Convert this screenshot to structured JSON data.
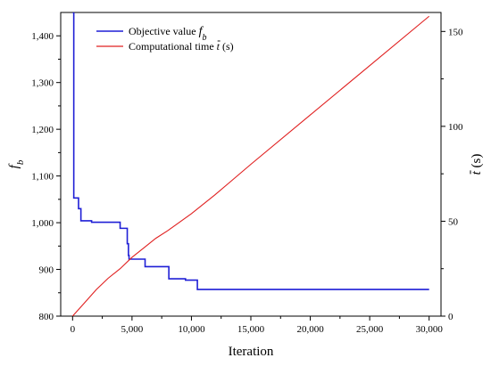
{
  "chart_data": {
    "type": "line",
    "xlabel": "Iteration",
    "ylabel_left": "f",
    "ylabel_left_sub": "b",
    "ylabel_right": "t (s)",
    "ylabel_right_italic": "t",
    "ylabel_right_unit": "(s)",
    "xlim": [
      -1000,
      31000
    ],
    "ylim_left": [
      800,
      1450
    ],
    "ylim_right": [
      0,
      160
    ],
    "x_ticks": [
      0,
      5000,
      10000,
      15000,
      20000,
      25000,
      30000
    ],
    "x_tick_labels": [
      "0",
      "5,000",
      "10,000",
      "15,000",
      "20,000",
      "25,000",
      "30,000"
    ],
    "y_left_ticks": [
      800,
      900,
      1000,
      1100,
      1200,
      1300,
      1400
    ],
    "y_left_tick_labels": [
      "800",
      "900",
      "1,000",
      "1,100",
      "1,200",
      "1,300",
      "1,400"
    ],
    "y_right_ticks": [
      0,
      50,
      100,
      150
    ],
    "y_right_tick_labels": [
      "0",
      "50",
      "100",
      "150"
    ],
    "grid": false,
    "legend_position": "top-left",
    "series": [
      {
        "name": "Objective value f_b",
        "legend_label": "Objective value ",
        "legend_italic": "f",
        "legend_sub": "b",
        "axis": "left",
        "color": "#1f1fd6",
        "step": true,
        "x": [
          0,
          100,
          500,
          700,
          1600,
          4000,
          4600,
          4700,
          4750,
          6100,
          8100,
          9500,
          10500,
          30000
        ],
        "y": [
          1450,
          1053,
          1030,
          1004,
          1001,
          988,
          955,
          930,
          922,
          906,
          880,
          877,
          857,
          857
        ]
      },
      {
        "name": "Computational time t (s)",
        "legend_label": "Computational time ",
        "legend_italic": "t",
        "legend_suffix": " (s)",
        "axis": "right",
        "color": "#e02020",
        "x": [
          0,
          1000,
          2000,
          3000,
          4000,
          5000,
          6000,
          7000,
          8000,
          10000,
          12000,
          15000,
          20000,
          25000,
          30000
        ],
        "y": [
          0,
          7,
          14,
          20,
          25,
          31,
          36,
          41,
          45,
          54,
          64,
          80,
          106,
          132,
          158
        ]
      }
    ]
  }
}
